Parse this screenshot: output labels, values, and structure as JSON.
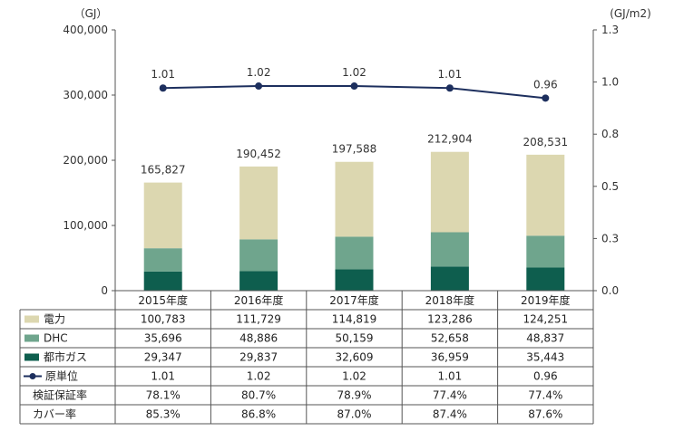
{
  "chart_data": {
    "type": "bar",
    "stacked": true,
    "categories": [
      "2015年度",
      "2016年度",
      "2017年度",
      "2018年度",
      "2019年度"
    ],
    "series": [
      {
        "name": "都市ガス",
        "values": [
          29347,
          29837,
          32609,
          36959,
          35443
        ],
        "color": "#0e5e4e",
        "axis": "left"
      },
      {
        "name": "DHC",
        "values": [
          35696,
          48886,
          50159,
          52658,
          48837
        ],
        "color": "#6fa58d",
        "axis": "left"
      },
      {
        "name": "電力",
        "values": [
          100783,
          111729,
          114819,
          123286,
          124251
        ],
        "color": "#dcd7b0",
        "axis": "left"
      },
      {
        "name": "原単位",
        "type": "line",
        "values": [
          1.01,
          1.02,
          1.02,
          1.01,
          0.96
        ],
        "color": "#1d2f5e",
        "axis": "right"
      }
    ],
    "totals": [
      "165,827",
      "190,452",
      "197,588",
      "212,904",
      "208,531"
    ],
    "line_labels": [
      "1.01",
      "1.02",
      "1.02",
      "1.01",
      "0.96"
    ],
    "ylim_left": [
      0,
      400000
    ],
    "ylim_right": [
      0,
      1.3
    ],
    "left_ticks": [
      "0",
      "100,000",
      "200,000",
      "300,000",
      "400,000"
    ],
    "right_ticks": [
      "0.0",
      "0.3",
      "0.5",
      "0.8",
      "1.0",
      "1.3"
    ],
    "ylabel_left": "（GJ）",
    "ylabel_right": "(GJ/m2)",
    "data_table": {
      "rows": [
        {
          "label": "電力",
          "marker": "box",
          "color": "#dcd7b0",
          "values": [
            "100,783",
            "111,729",
            "114,819",
            "123,286",
            "124,251"
          ]
        },
        {
          "label": "DHC",
          "marker": "box",
          "color": "#6fa58d",
          "values": [
            "35,696",
            "48,886",
            "50,159",
            "52,658",
            "48,837"
          ]
        },
        {
          "label": "都市ガス",
          "marker": "box",
          "color": "#0e5e4e",
          "values": [
            "29,347",
            "29,837",
            "32,609",
            "36,959",
            "35,443"
          ]
        },
        {
          "label": "原単位",
          "marker": "line",
          "color": "#1d2f5e",
          "values": [
            "1.01",
            "1.02",
            "1.02",
            "1.01",
            "0.96"
          ]
        },
        {
          "label": "検証保証率",
          "marker": "none",
          "values": [
            "78.1%",
            "80.7%",
            "78.9%",
            "77.4%",
            "77.4%"
          ]
        },
        {
          "label": "カバー率",
          "marker": "none",
          "values": [
            "85.3%",
            "86.8%",
            "87.0%",
            "87.4%",
            "87.6%"
          ]
        }
      ]
    }
  }
}
